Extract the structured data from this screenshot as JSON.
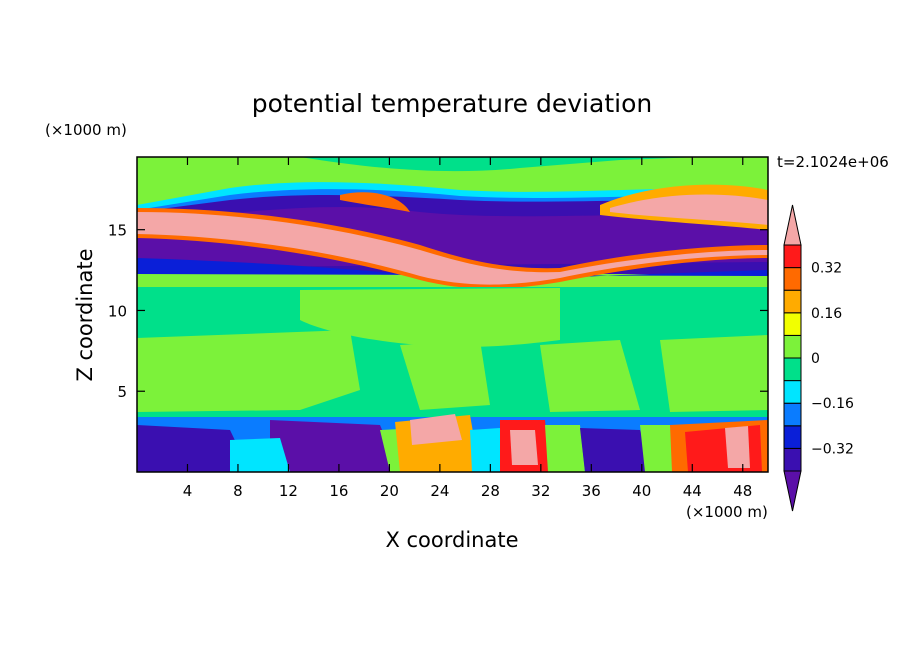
{
  "chart_data": {
    "type": "heatmap",
    "title": "potential temperature deviation",
    "xlabel": "X coordinate",
    "ylabel": "Z coordinate",
    "x_unit_label": "(×1000 m)",
    "y_unit_label": "(×1000 m)",
    "time_label": "t=2.1024e+06",
    "xlim": [
      0,
      50
    ],
    "ylim": [
      0,
      19.5
    ],
    "x_ticks": [
      4,
      8,
      12,
      16,
      20,
      24,
      28,
      32,
      36,
      40,
      44,
      48
    ],
    "x_tick_labels": [
      "4",
      "8",
      "12",
      "16",
      "20",
      "24",
      "28",
      "32",
      "36",
      "40",
      "44",
      "48"
    ],
    "y_ticks": [
      5,
      10,
      15
    ],
    "y_tick_labels": [
      "5",
      "10",
      "15"
    ],
    "colorbar": {
      "levels": [
        -0.4,
        -0.32,
        -0.24,
        -0.16,
        -0.08,
        0,
        0.08,
        0.16,
        0.24,
        0.32,
        0.4
      ],
      "tick_values": [
        0.32,
        0.16,
        0,
        -0.16,
        -0.32
      ],
      "tick_labels": [
        "0.32",
        "0.16",
        "0",
        "−0.16",
        "−0.32"
      ],
      "colors": [
        "#5b0fa8",
        "#3a0fb0",
        "#0a1fd8",
        "#0a7cff",
        "#00e5ff",
        "#00e08a",
        "#7cf23a",
        "#f2ff00",
        "#ffab00",
        "#ff6a00",
        "#ff1a1a",
        "#f4a7a7"
      ]
    },
    "layers": [
      {
        "name": "upper-background",
        "z": [
          12.3,
          19.5
        ],
        "value": 0
      },
      {
        "name": "upper-negative-band",
        "z": [
          12.6,
          17.5
        ],
        "value": -0.3
      },
      {
        "name": "upper-positive-ribbon",
        "z": [
          11.8,
          16.8
        ],
        "value": 0.42
      },
      {
        "name": "mid-troposphere",
        "z": [
          3.6,
          12.3
        ],
        "value": 0.02
      },
      {
        "name": "boundary-layer",
        "z": [
          0,
          3.6
        ],
        "value": -0.2
      },
      {
        "name": "surface-warm-anomalies",
        "x_centers": [
          24,
          30,
          46
        ],
        "value": 0.35
      }
    ]
  }
}
